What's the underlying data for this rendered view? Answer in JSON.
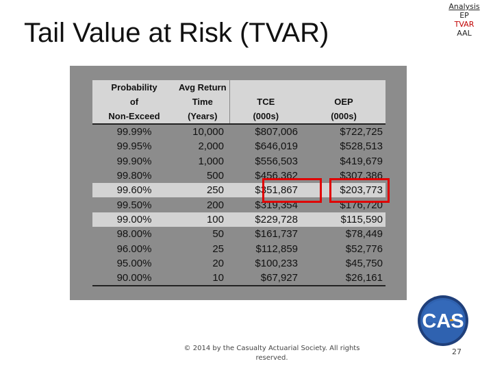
{
  "slide": {
    "title": "Tail Value at Risk (TVAR)",
    "footer": "© 2014 by the Casualty Actuarial Society. All rights reserved.",
    "page_number": "27"
  },
  "nav": {
    "items": [
      {
        "label": "Analysis",
        "active": false,
        "link": true
      },
      {
        "label": "EP",
        "active": false,
        "link": false
      },
      {
        "label": "TVAR",
        "active": true,
        "link": false
      },
      {
        "label": "AAL",
        "active": false,
        "link": false
      }
    ],
    "active_color": "#c00000"
  },
  "table": {
    "headers": {
      "row1": [
        "Probability",
        "Avg Return",
        "",
        ""
      ],
      "row2": [
        "of",
        "Time",
        "TCE",
        "OEP"
      ],
      "row3": [
        "Non-Exceed",
        "(Years)",
        "(000s)",
        "(000s)"
      ]
    },
    "rows": [
      {
        "prob": "99.99%",
        "ret": "10,000",
        "tce": "$807,006",
        "oep": "$722,725"
      },
      {
        "prob": "99.95%",
        "ret": "2,000",
        "tce": "$646,019",
        "oep": "$528,513"
      },
      {
        "prob": "99.90%",
        "ret": "1,000",
        "tce": "$556,503",
        "oep": "$419,679"
      },
      {
        "prob": "99.80%",
        "ret": "500",
        "tce": "$456,362",
        "oep": "$307,386"
      },
      {
        "prob": "99.60%",
        "ret": "250",
        "tce": "$351,867",
        "oep": "$203,773"
      },
      {
        "prob": "99.50%",
        "ret": "200",
        "tce": "$319,354",
        "oep": "$176,720"
      },
      {
        "prob": "99.00%",
        "ret": "100",
        "tce": "$229,728",
        "oep": "$115,590"
      },
      {
        "prob": "98.00%",
        "ret": "50",
        "tce": "$161,737",
        "oep": "$78,449"
      },
      {
        "prob": "96.00%",
        "ret": "25",
        "tce": "$112,859",
        "oep": "$52,776"
      },
      {
        "prob": "95.00%",
        "ret": "20",
        "tce": "$100,233",
        "oep": "$45,750"
      },
      {
        "prob": "90.00%",
        "ret": "10",
        "tce": "$67,927",
        "oep": "$26,161"
      }
    ],
    "highlighted_rows": [
      4,
      6
    ],
    "boxed_cells": [
      "tce:99.60%",
      "oep:99.60%"
    ],
    "box_color": "#e00000"
  },
  "logo": {
    "text": "CAS",
    "name": "cas-logo",
    "ring_color": "#1f3f7a",
    "inner_color": "#2f62b0"
  }
}
